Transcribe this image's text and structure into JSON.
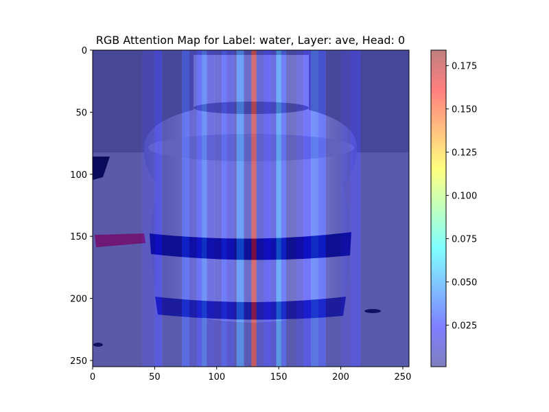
{
  "chart_data": {
    "type": "heatmap",
    "title": "RGB Attention Map for Label: water, Layer: ave, Head: 0",
    "xlabel": "",
    "ylabel": "",
    "xlim": [
      0,
      255
    ],
    "ylim": [
      255,
      0
    ],
    "x_ticks": [
      0,
      50,
      100,
      150,
      200,
      250
    ],
    "y_ticks": [
      0,
      50,
      100,
      150,
      200,
      250
    ],
    "colorbar": {
      "range": [
        0.001,
        0.184
      ],
      "ticks": [
        0.025,
        0.05,
        0.075,
        0.1,
        0.125,
        0.15,
        0.175
      ],
      "tick_labels": [
        "0.025",
        "0.050",
        "0.075",
        "0.100",
        "0.125",
        "0.150",
        "0.175"
      ],
      "colormap": "jet",
      "alpha": 0.5
    },
    "overlay_image": "water-bottle-photo",
    "column_attention": [
      {
        "x0": 0,
        "x1": 40,
        "value": 0.004
      },
      {
        "x0": 40,
        "x1": 50,
        "value": 0.012
      },
      {
        "x0": 50,
        "x1": 56,
        "value": 0.022
      },
      {
        "x0": 56,
        "x1": 72,
        "value": 0.006
      },
      {
        "x0": 72,
        "x1": 78,
        "value": 0.03
      },
      {
        "x0": 78,
        "x1": 84,
        "value": 0.012
      },
      {
        "x0": 84,
        "x1": 88,
        "value": 0.026
      },
      {
        "x0": 88,
        "x1": 92,
        "value": 0.036
      },
      {
        "x0": 92,
        "x1": 98,
        "value": 0.016
      },
      {
        "x0": 98,
        "x1": 104,
        "value": 0.012
      },
      {
        "x0": 104,
        "x1": 108,
        "value": 0.028
      },
      {
        "x0": 108,
        "x1": 114,
        "value": 0.018
      },
      {
        "x0": 114,
        "x1": 116,
        "value": 0.006
      },
      {
        "x0": 116,
        "x1": 122,
        "value": 0.042
      },
      {
        "x0": 122,
        "x1": 128,
        "value": 0.008
      },
      {
        "x0": 128,
        "x1": 132,
        "value": 0.17
      },
      {
        "x0": 132,
        "x1": 138,
        "value": 0.012
      },
      {
        "x0": 138,
        "x1": 144,
        "value": 0.022
      },
      {
        "x0": 144,
        "x1": 148,
        "value": 0.016
      },
      {
        "x0": 148,
        "x1": 152,
        "value": 0.046
      },
      {
        "x0": 152,
        "x1": 156,
        "value": 0.03
      },
      {
        "x0": 156,
        "x1": 164,
        "value": 0.006
      },
      {
        "x0": 164,
        "x1": 170,
        "value": 0.014
      },
      {
        "x0": 170,
        "x1": 176,
        "value": 0.024
      },
      {
        "x0": 176,
        "x1": 182,
        "value": 0.034
      },
      {
        "x0": 182,
        "x1": 188,
        "value": 0.028
      },
      {
        "x0": 188,
        "x1": 200,
        "value": 0.006
      },
      {
        "x0": 200,
        "x1": 208,
        "value": 0.012
      },
      {
        "x0": 208,
        "x1": 216,
        "value": 0.02
      },
      {
        "x0": 216,
        "x1": 255,
        "value": 0.005
      }
    ]
  }
}
